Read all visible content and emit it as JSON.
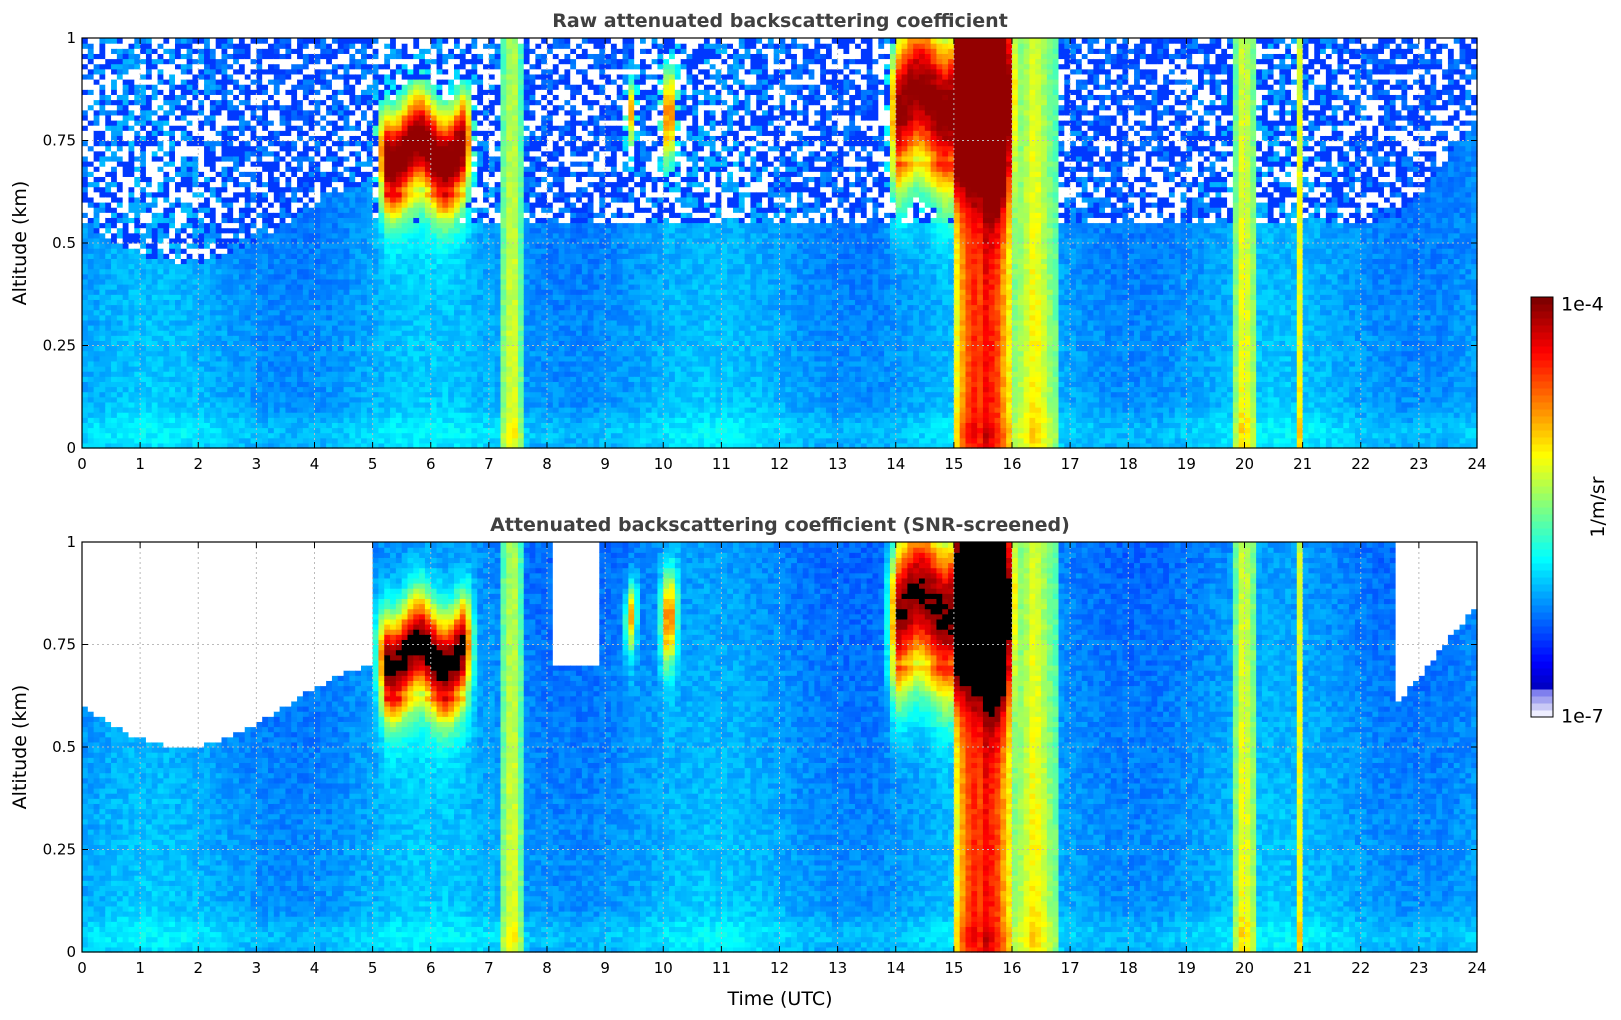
{
  "chart_data": [
    {
      "type": "heatmap",
      "title": "Raw attenuated backscattering coefficient",
      "xlabel": "",
      "ylabel": "Altitude (km)",
      "xlim": [
        0,
        24
      ],
      "ylim": [
        0,
        1
      ],
      "x_ticks": [
        "0",
        "1",
        "2",
        "3",
        "4",
        "5",
        "6",
        "7",
        "8",
        "9",
        "10",
        "11",
        "12",
        "13",
        "14",
        "15",
        "16",
        "17",
        "18",
        "19",
        "20",
        "21",
        "22",
        "23",
        "24"
      ],
      "y_ticks": [
        "0",
        "0.25",
        "0.5",
        "0.75",
        "1"
      ],
      "grid": true,
      "screened": false,
      "features": {
        "cloud_layers": [
          {
            "start": 5.0,
            "end": 6.8,
            "base": 0.63,
            "top": 0.82,
            "intensity": "high"
          },
          {
            "start": 9.3,
            "end": 9.6,
            "base": 0.76,
            "top": 0.88,
            "intensity": "high"
          },
          {
            "start": 9.9,
            "end": 10.3,
            "base": 0.76,
            "top": 0.93,
            "intensity": "high"
          },
          {
            "start": 13.8,
            "end": 16.1,
            "base": 0.7,
            "top": 1.0,
            "intensity": "high"
          }
        ],
        "precipitation_columns": [
          {
            "start": 7.2,
            "end": 7.6,
            "intensity": "medium"
          },
          {
            "start": 15.0,
            "end": 16.0,
            "intensity": "high"
          },
          {
            "start": 16.0,
            "end": 16.8,
            "intensity": "medium"
          },
          {
            "start": 19.8,
            "end": 20.2,
            "intensity": "medium"
          },
          {
            "start": 20.9,
            "end": 21.0,
            "intensity": "medium"
          }
        ]
      }
    },
    {
      "type": "heatmap",
      "title": "Attenuated backscattering coefficient (SNR-screened)",
      "xlabel": "Time (UTC)",
      "ylabel": "Altitude (km)",
      "xlim": [
        0,
        24
      ],
      "ylim": [
        0,
        1
      ],
      "x_ticks": [
        "0",
        "1",
        "2",
        "3",
        "4",
        "5",
        "6",
        "7",
        "8",
        "9",
        "10",
        "11",
        "12",
        "13",
        "14",
        "15",
        "16",
        "17",
        "18",
        "19",
        "20",
        "21",
        "22",
        "23",
        "24"
      ],
      "y_ticks": [
        "0",
        "0.25",
        "0.5",
        "0.75",
        "1"
      ],
      "grid": true,
      "screened": true,
      "missing_color": "#ffffff"
    }
  ],
  "colorbar": {
    "label": "1/m/sr",
    "min_label": "1e-7",
    "max_label": "1e-4",
    "min": 1e-07,
    "max": 0.0001,
    "scale": "log",
    "colormap": "jet"
  }
}
